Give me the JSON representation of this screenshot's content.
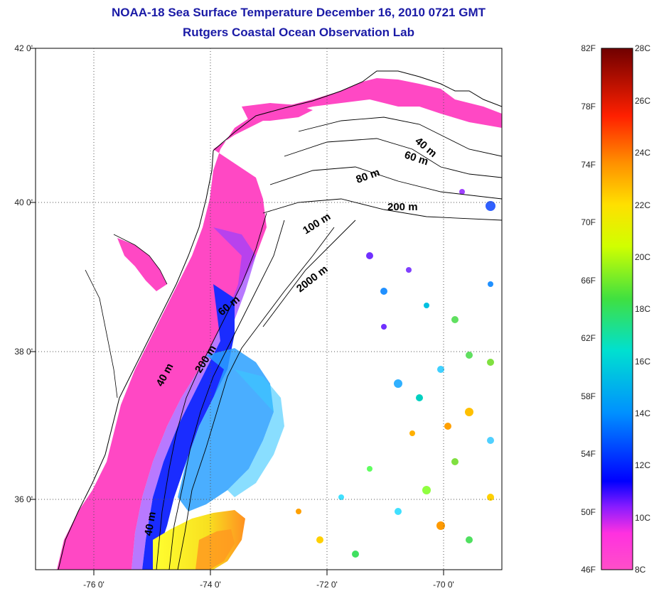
{
  "title": {
    "line1": "NOAA-18 Sea Surface Temperature December 16, 2010 0721 GMT",
    "line2": "Rutgers Coastal Ocean Observation Lab"
  },
  "map": {
    "lat_ticks": [
      "42 0'",
      "40 0'",
      "38 0'",
      "36 0'"
    ],
    "lon_ticks": [
      "-76 0'",
      "-74 0'",
      "-72 0'",
      "-70 0'"
    ],
    "isobath_labels": [
      "40 m",
      "60 m",
      "80 m",
      "200 m",
      "100 m",
      "2000 m",
      "60 m",
      "200 m",
      "40 m",
      "40 m"
    ]
  },
  "colorbar": {
    "fahrenheit_labels": [
      "82F",
      "78F",
      "74F",
      "70F",
      "66F",
      "62F",
      "58F",
      "54F",
      "50F",
      "46F"
    ],
    "celsius_labels": [
      "28C",
      "26C",
      "24C",
      "22C",
      "20C",
      "18C",
      "16C",
      "14C",
      "12C",
      "10C",
      "8C"
    ],
    "colors": [
      "#ff4fc8",
      "#8a1cff",
      "#0000ff",
      "#00a0ff",
      "#00e0d0",
      "#40e040",
      "#ffff00",
      "#ffa000",
      "#ff2000",
      "#7a0000"
    ]
  }
}
